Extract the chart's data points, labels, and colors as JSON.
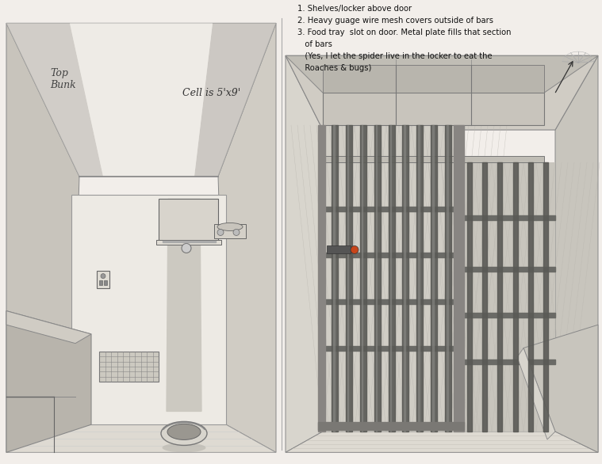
{
  "figsize": [
    7.59,
    5.86
  ],
  "dpi": 100,
  "bg_color": "#f2eeea",
  "annotations_line1": "1. Shelves/locker above door",
  "annotations_line2": "2. Heavy guage wire mesh covers outside of bars",
  "annotations_line3": "3. Food tray  slot on door. Metal plate fills that section",
  "annotations_line4": "   of bars",
  "annotations_line5": "   (Yes, I let the spider live in the locker to eat the",
  "annotations_line6": "   Roaches & bugs)",
  "cell_label": "Cell is 5'x9'",
  "top_bunk_label": "Top\nBunk"
}
